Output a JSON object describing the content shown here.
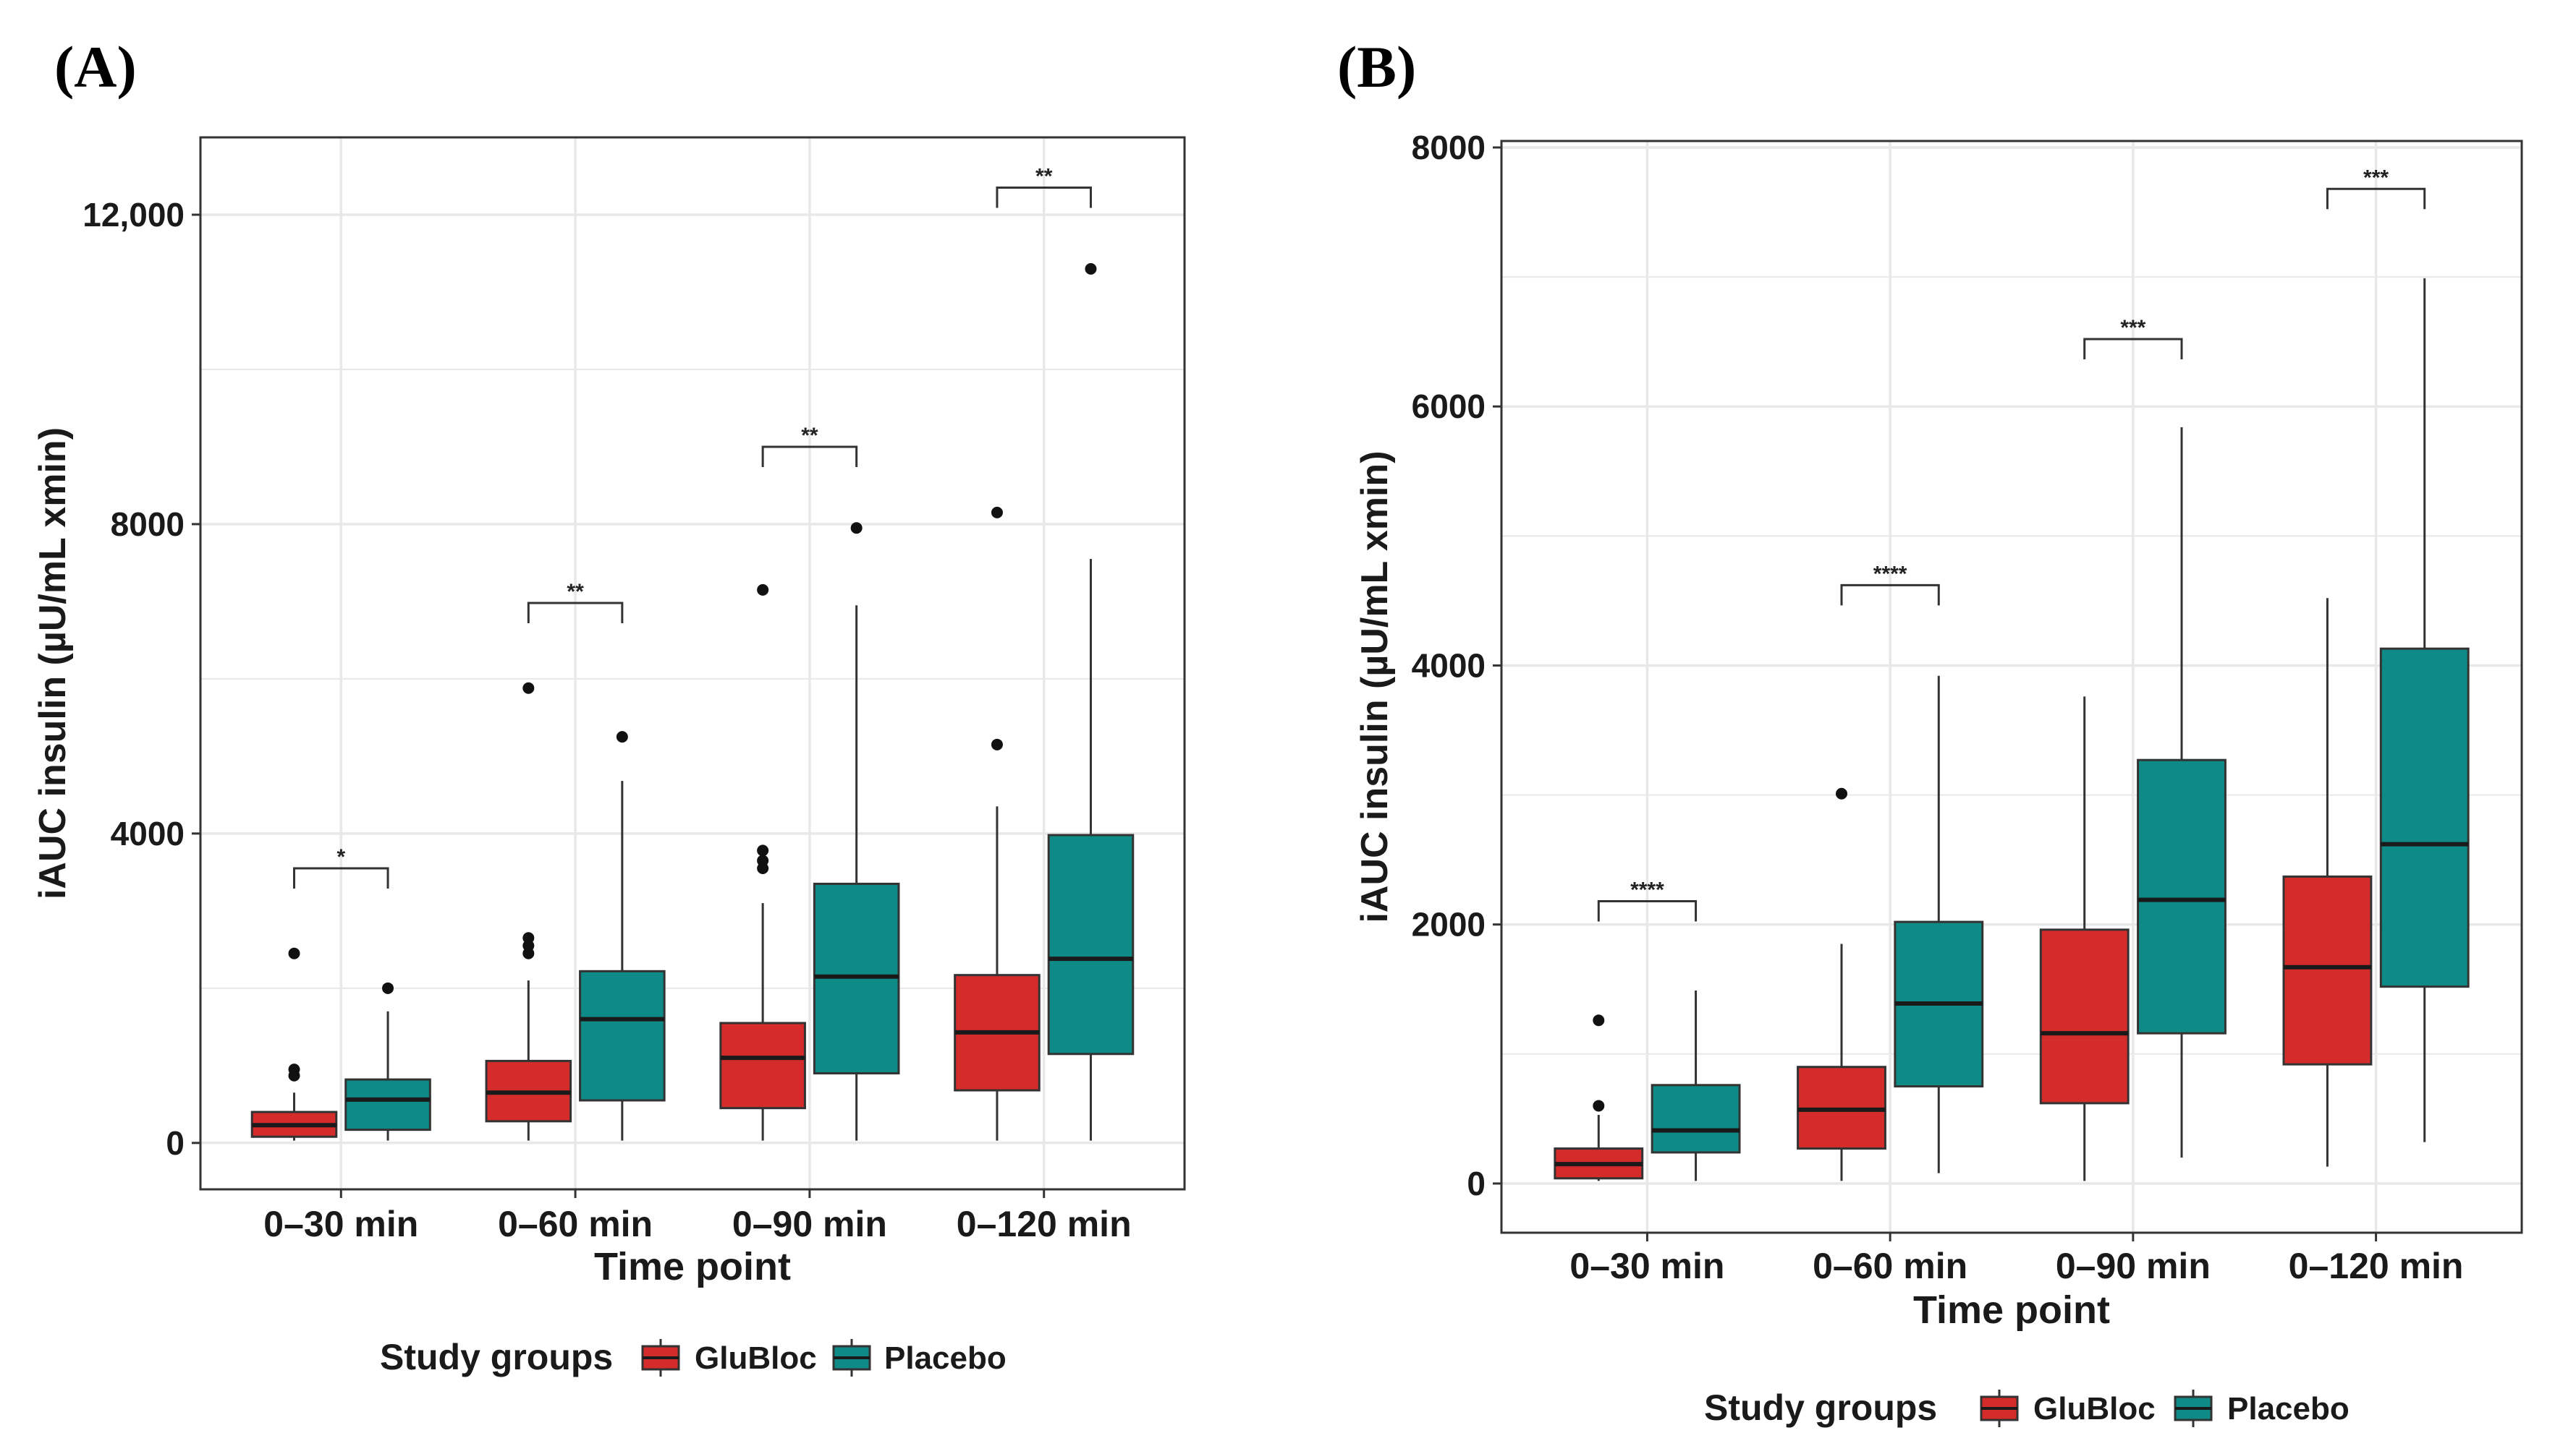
{
  "colors": {
    "glubloc": "#D42B2B",
    "placebo": "#0E8B86",
    "grid": "#E8E8E8",
    "frame": "#333333",
    "text": "#1A1A1A"
  },
  "chart_data": [
    {
      "panel_label": "(A)",
      "type": "boxplot",
      "xlabel": "Time point",
      "ylabel": "iAUC insulin (µU/mL xmin)",
      "ylim": [
        -600,
        13000
      ],
      "yticks": [
        0,
        4000,
        8000,
        12000
      ],
      "ytick_labels": [
        "0",
        "4000",
        "8000",
        "12,000"
      ],
      "categories": [
        "0–30 min",
        "0–60 min",
        "0–90 min",
        "0–120 min"
      ],
      "legend": {
        "title": "Study groups",
        "entries": [
          "GluBloc",
          "Placebo"
        ]
      },
      "series": [
        {
          "name": "GluBloc",
          "boxes": [
            {
              "min": 30,
              "q1": 80,
              "median": 230,
              "q3": 400,
              "max": 650,
              "outliers": [
                870,
                950,
                2450
              ]
            },
            {
              "min": 30,
              "q1": 280,
              "median": 650,
              "q3": 1060,
              "max": 2100,
              "outliers": [
                2450,
                2550,
                2650,
                5880
              ]
            },
            {
              "min": 30,
              "q1": 450,
              "median": 1100,
              "q3": 1550,
              "max": 3100,
              "outliers": [
                3550,
                3650,
                3780,
                7150
              ]
            },
            {
              "min": 30,
              "q1": 680,
              "median": 1430,
              "q3": 2170,
              "max": 4350,
              "outliers": [
                5150,
                8150
              ]
            }
          ]
        },
        {
          "name": "Placebo",
          "boxes": [
            {
              "min": 30,
              "q1": 170,
              "median": 560,
              "q3": 820,
              "max": 1700,
              "outliers": [
                2000
              ]
            },
            {
              "min": 30,
              "q1": 550,
              "median": 1600,
              "q3": 2220,
              "max": 4680,
              "outliers": [
                5250
              ]
            },
            {
              "min": 30,
              "q1": 900,
              "median": 2150,
              "q3": 3350,
              "max": 6950,
              "outliers": [
                7950
              ]
            },
            {
              "min": 30,
              "q1": 1150,
              "median": 2380,
              "q3": 3980,
              "max": 7550,
              "outliers": [
                11300
              ]
            }
          ]
        }
      ],
      "significance": [
        {
          "category": 0,
          "y": 3550,
          "label": "*"
        },
        {
          "category": 1,
          "y": 6980,
          "label": "**"
        },
        {
          "category": 2,
          "y": 9000,
          "label": "**"
        },
        {
          "category": 3,
          "y": 12350,
          "label": "**"
        }
      ]
    },
    {
      "panel_label": "(B)",
      "type": "boxplot",
      "xlabel": "Time point",
      "ylabel": "iAUC insulin (µU/mL xmin)",
      "ylim": [
        -380,
        8050
      ],
      "yticks": [
        0,
        2000,
        4000,
        6000,
        8000
      ],
      "ytick_labels": [
        "0",
        "2000",
        "4000",
        "6000",
        "8000"
      ],
      "categories": [
        "0–30 min",
        "0–60 min",
        "0–90 min",
        "0–120 min"
      ],
      "legend": {
        "title": "Study groups",
        "entries": [
          "GluBloc",
          "Placebo"
        ]
      },
      "series": [
        {
          "name": "GluBloc",
          "boxes": [
            {
              "min": 20,
              "q1": 40,
              "median": 150,
              "q3": 270,
              "max": 530,
              "outliers": [
                600,
                1260
              ]
            },
            {
              "min": 20,
              "q1": 270,
              "median": 570,
              "q3": 900,
              "max": 1850,
              "outliers": [
                3010
              ]
            },
            {
              "min": 20,
              "q1": 620,
              "median": 1160,
              "q3": 1960,
              "max": 3760,
              "outliers": []
            },
            {
              "min": 130,
              "q1": 920,
              "median": 1670,
              "q3": 2370,
              "max": 4520,
              "outliers": []
            }
          ]
        },
        {
          "name": "Placebo",
          "boxes": [
            {
              "min": 20,
              "q1": 240,
              "median": 410,
              "q3": 760,
              "max": 1490,
              "outliers": []
            },
            {
              "min": 80,
              "q1": 750,
              "median": 1390,
              "q3": 2020,
              "max": 3920,
              "outliers": []
            },
            {
              "min": 200,
              "q1": 1160,
              "median": 2190,
              "q3": 3270,
              "max": 5840,
              "outliers": []
            },
            {
              "min": 320,
              "q1": 1520,
              "median": 2620,
              "q3": 4130,
              "max": 6990,
              "outliers": []
            }
          ]
        }
      ],
      "significance": [
        {
          "category": 0,
          "y": 2180,
          "label": "****"
        },
        {
          "category": 1,
          "y": 4620,
          "label": "****"
        },
        {
          "category": 2,
          "y": 6520,
          "label": "***"
        },
        {
          "category": 3,
          "y": 7680,
          "label": "***"
        }
      ]
    }
  ]
}
